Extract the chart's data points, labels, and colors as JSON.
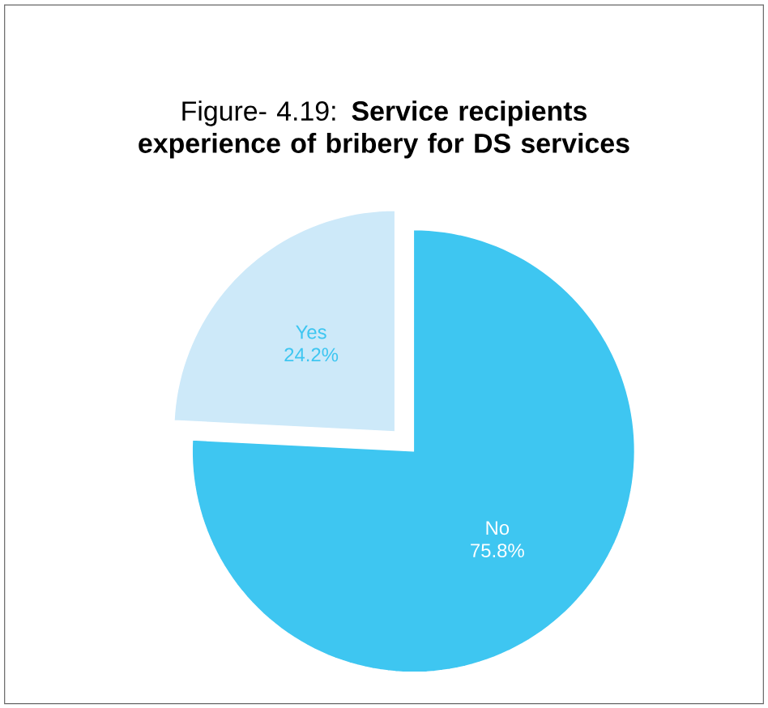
{
  "chart_data": {
    "type": "pie",
    "title": "Figure- 4.19:  **Service recipients experience of bribery for DS services**",
    "categories": [
      "Yes",
      "No"
    ],
    "values": [
      24.2,
      75.8
    ],
    "colors": [
      "#cde9f9",
      "#3ec6f1"
    ],
    "value_labels": [
      "24.2%",
      "75.8%"
    ]
  }
}
